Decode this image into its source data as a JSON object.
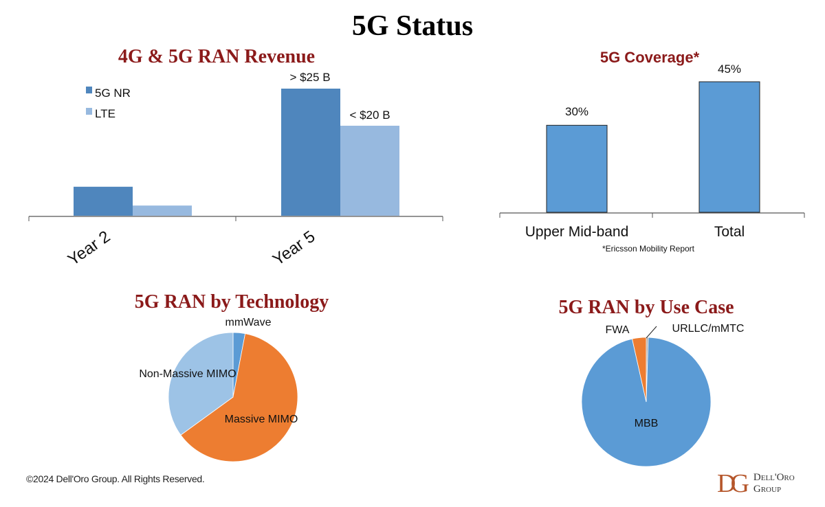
{
  "title": "5G Status",
  "footer": {
    "copyright": "©2024 Dell'Oro Group. All Rights Reserved.",
    "logo_line1": "Dell'Oro",
    "logo_line2": "Group",
    "logo_mark": "DG"
  },
  "chart_data": [
    {
      "type": "bar",
      "title": "4G & 5G RAN Revenue",
      "categories": [
        "Year 2",
        "Year 5"
      ],
      "series": [
        {
          "name": "5G NR",
          "values": [
            5.7,
            25
          ],
          "color": "#4f86bd"
        },
        {
          "name": "LTE",
          "values": [
            2.0,
            17.7
          ],
          "color": "#97b9df"
        }
      ],
      "data_labels": {
        "5G NR": [
          "",
          "> $25 B"
        ],
        "LTE": [
          "",
          "< $20 B"
        ]
      },
      "ylim": [
        0,
        25
      ],
      "legend": "top-left",
      "grid": false
    },
    {
      "type": "bar",
      "title": "5G Coverage*",
      "categories": [
        "Upper Mid-band",
        "Total"
      ],
      "values": [
        30,
        45
      ],
      "data_labels": [
        "30%",
        "45%"
      ],
      "color": "#5b9bd5",
      "ylim": [
        0,
        45
      ],
      "note": "*Ericsson Mobility Report",
      "grid": false
    },
    {
      "type": "pie",
      "title": "5G RAN by Technology",
      "slices": [
        {
          "label": "mmWave",
          "value": 3,
          "color": "#5b9bd5"
        },
        {
          "label": "Massive MIMO",
          "value": 62,
          "color": "#ed7d31"
        },
        {
          "label": "Non-Massive MIMO",
          "value": 35,
          "color": "#9dc3e6"
        }
      ]
    },
    {
      "type": "pie",
      "title": "5G RAN by Use Case",
      "slices": [
        {
          "label": "URLLC/mMTC",
          "value": 0.5,
          "color": "#a5a5a5"
        },
        {
          "label": "MBB",
          "value": 96,
          "color": "#5b9bd5"
        },
        {
          "label": "FWA",
          "value": 3.5,
          "color": "#ed7d31"
        }
      ]
    }
  ]
}
